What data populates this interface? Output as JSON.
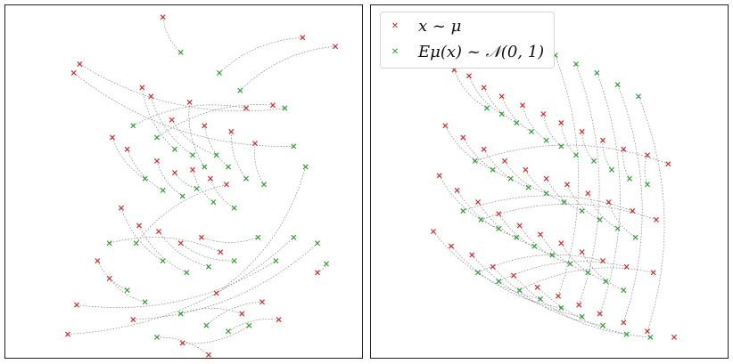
{
  "chart_data": [
    {
      "type": "scatter",
      "title": "",
      "xlabel": "",
      "ylabel": "",
      "grid": false,
      "axes_ticks": false,
      "series": [
        {
          "name": "",
          "color": "#d62728",
          "marker": "x",
          "values": [
            [
              -0.35,
              2.8
            ],
            [
              2.0,
              2.45
            ],
            [
              2.55,
              2.3
            ],
            [
              -1.75,
              2.0
            ],
            [
              -1.85,
              1.85
            ],
            [
              1.05,
              1.25
            ],
            [
              1.5,
              1.3
            ],
            [
              -0.7,
              1.6
            ],
            [
              -0.55,
              1.45
            ],
            [
              0.1,
              1.35
            ],
            [
              -0.2,
              1.05
            ],
            [
              0.35,
              0.95
            ],
            [
              0.8,
              0.85
            ],
            [
              1.2,
              0.65
            ],
            [
              -1.2,
              0.75
            ],
            [
              -0.95,
              0.55
            ],
            [
              -0.45,
              0.35
            ],
            [
              -0.15,
              0.15
            ],
            [
              0.15,
              0.2
            ],
            [
              0.45,
              0.05
            ],
            [
              0.72,
              -0.05
            ],
            [
              -1.05,
              -0.45
            ],
            [
              -0.75,
              -0.75
            ],
            [
              -0.42,
              -0.85
            ],
            [
              -0.05,
              -1.05
            ],
            [
              0.3,
              -0.95
            ],
            [
              0.62,
              -1.2
            ],
            [
              -1.45,
              -1.35
            ],
            [
              -1.25,
              -1.65
            ],
            [
              -1.8,
              -2.1
            ],
            [
              -1.95,
              -2.6
            ],
            [
              -0.85,
              -2.35
            ],
            [
              0.55,
              -1.9
            ],
            [
              0.98,
              -2.25
            ],
            [
              1.32,
              -2.05
            ],
            [
              1.6,
              -2.35
            ],
            [
              -0.02,
              -2.75
            ],
            [
              0.42,
              -2.95
            ],
            [
              2.25,
              -1.55
            ]
          ]
        },
        {
          "name": "",
          "color": "#2ca02c",
          "marker": "x",
          "values": [
            [
              -0.05,
              2.2
            ],
            [
              0.6,
              1.85
            ],
            [
              0.95,
              1.55
            ],
            [
              1.7,
              1.25
            ],
            [
              1.85,
              0.6
            ],
            [
              -0.85,
              0.95
            ],
            [
              -0.45,
              0.75
            ],
            [
              -0.15,
              0.55
            ],
            [
              0.15,
              0.45
            ],
            [
              0.35,
              0.25
            ],
            [
              0.55,
              0.45
            ],
            [
              0.75,
              0.25
            ],
            [
              1.05,
              0.05
            ],
            [
              1.35,
              -0.05
            ],
            [
              -0.65,
              0.05
            ],
            [
              -0.35,
              -0.15
            ],
            [
              -0.02,
              -0.25
            ],
            [
              0.22,
              -0.12
            ],
            [
              0.5,
              -0.35
            ],
            [
              0.85,
              -0.45
            ],
            [
              -0.8,
              -1.05
            ],
            [
              -0.35,
              -1.35
            ],
            [
              0.05,
              -1.55
            ],
            [
              0.42,
              -1.45
            ],
            [
              0.85,
              -1.35
            ],
            [
              1.25,
              -0.95
            ],
            [
              -1.25,
              -1.05
            ],
            [
              -0.95,
              -1.85
            ],
            [
              -0.65,
              -2.05
            ],
            [
              1.55,
              -1.35
            ],
            [
              1.85,
              -0.95
            ],
            [
              2.25,
              -1.05
            ],
            [
              2.05,
              0.25
            ],
            [
              -0.05,
              -2.25
            ],
            [
              0.38,
              -2.45
            ],
            [
              0.75,
              -2.55
            ],
            [
              1.1,
              -2.45
            ],
            [
              -0.45,
              -2.65
            ],
            [
              2.4,
              -1.4
            ]
          ]
        }
      ]
    },
    {
      "type": "scatter",
      "title": "",
      "xlabel": "",
      "ylabel": "",
      "grid": false,
      "axes_ticks": false,
      "legend": {
        "placement": "top-left",
        "entries": [
          {
            "label_main": "x ~ μ",
            "color": "#d62728",
            "marker": "x"
          },
          {
            "label_main": "Eμ(x) ~ 𝒩(0, 1)",
            "color": "#2ca02c",
            "marker": "x"
          }
        ]
      },
      "series": [
        {
          "name": "x ~ μ",
          "color": "#d62728",
          "marker": "x",
          "values": [
            [
              -1.6,
              1.9
            ],
            [
              -1.35,
              1.8
            ],
            [
              -1.1,
              1.6
            ],
            [
              -0.8,
              1.45
            ],
            [
              -0.45,
              1.3
            ],
            [
              -0.1,
              1.15
            ],
            [
              0.2,
              1.0
            ],
            [
              0.55,
              0.85
            ],
            [
              0.9,
              0.7
            ],
            [
              1.25,
              0.55
            ],
            [
              1.65,
              0.45
            ],
            [
              2.0,
              0.3
            ],
            [
              -1.75,
              0.95
            ],
            [
              -1.45,
              0.75
            ],
            [
              -1.1,
              0.55
            ],
            [
              -0.75,
              0.35
            ],
            [
              -0.4,
              0.2
            ],
            [
              -0.05,
              0.05
            ],
            [
              0.3,
              -0.05
            ],
            [
              0.65,
              -0.2
            ],
            [
              1.0,
              -0.35
            ],
            [
              1.4,
              -0.5
            ],
            [
              1.8,
              -0.65
            ],
            [
              -1.85,
              0.1
            ],
            [
              -1.55,
              -0.15
            ],
            [
              -1.2,
              -0.35
            ],
            [
              -0.85,
              -0.55
            ],
            [
              -0.5,
              -0.75
            ],
            [
              -0.15,
              -0.9
            ],
            [
              0.2,
              -1.05
            ],
            [
              0.55,
              -1.2
            ],
            [
              0.9,
              -1.35
            ],
            [
              1.3,
              -1.45
            ],
            [
              1.75,
              -1.55
            ],
            [
              -1.95,
              -0.85
            ],
            [
              -1.65,
              -1.1
            ],
            [
              -1.3,
              -1.25
            ],
            [
              -0.95,
              -1.45
            ],
            [
              -0.6,
              -1.6
            ],
            [
              -0.2,
              -1.8
            ],
            [
              0.15,
              -1.95
            ],
            [
              0.5,
              -2.1
            ],
            [
              0.85,
              -2.25
            ],
            [
              1.25,
              -2.4
            ],
            [
              1.65,
              -2.55
            ],
            [
              2.1,
              -2.65
            ]
          ]
        },
        {
          "name": "Eμ(x) ~ 𝒩(0, 1)",
          "color": "#2ca02c",
          "marker": "x",
          "values": [
            [
              -1.05,
              1.25
            ],
            [
              -0.8,
              1.15
            ],
            [
              -0.55,
              1.0
            ],
            [
              -0.3,
              0.85
            ],
            [
              -0.05,
              0.7
            ],
            [
              0.2,
              0.6
            ],
            [
              0.45,
              0.45
            ],
            [
              0.75,
              0.35
            ],
            [
              1.05,
              0.2
            ],
            [
              1.35,
              0.05
            ],
            [
              1.65,
              -0.05
            ],
            [
              -1.25,
              0.35
            ],
            [
              -0.95,
              0.2
            ],
            [
              -0.65,
              0.05
            ],
            [
              -0.35,
              -0.1
            ],
            [
              -0.05,
              -0.2
            ],
            [
              0.25,
              -0.35
            ],
            [
              0.55,
              -0.5
            ],
            [
              0.85,
              -0.65
            ],
            [
              1.15,
              -0.8
            ],
            [
              1.45,
              -0.95
            ],
            [
              -1.45,
              -0.5
            ],
            [
              -1.15,
              -0.65
            ],
            [
              -0.85,
              -0.8
            ],
            [
              -0.55,
              -0.95
            ],
            [
              -0.25,
              -1.1
            ],
            [
              0.05,
              -1.25
            ],
            [
              0.35,
              -1.4
            ],
            [
              0.65,
              -1.55
            ],
            [
              0.95,
              -1.7
            ],
            [
              1.25,
              -1.85
            ],
            [
              -1.2,
              -1.55
            ],
            [
              -0.85,
              -1.7
            ],
            [
              -0.5,
              -1.85
            ],
            [
              -0.15,
              -2.0
            ],
            [
              0.2,
              -2.15
            ],
            [
              0.55,
              -2.3
            ],
            [
              0.9,
              -2.45
            ],
            [
              1.3,
              -2.6
            ],
            [
              1.7,
              -2.65
            ],
            [
              0.1,
              2.15
            ],
            [
              0.45,
              2.0
            ],
            [
              0.8,
              1.85
            ],
            [
              1.15,
              1.65
            ],
            [
              1.5,
              1.45
            ]
          ]
        }
      ]
    }
  ]
}
